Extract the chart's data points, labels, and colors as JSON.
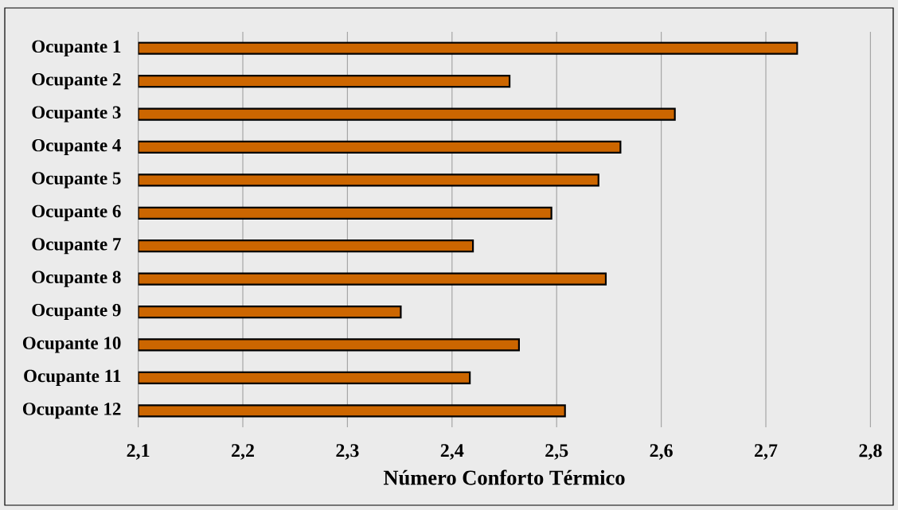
{
  "chart_data": {
    "type": "bar",
    "orientation": "horizontal",
    "xlabel": "Número Conforto Térmico",
    "categories": [
      "Ocupante 1",
      "Ocupante 2",
      "Ocupante 3",
      "Ocupante 4",
      "Ocupante 5",
      "Ocupante 6",
      "Ocupante 7",
      "Ocupante 8",
      "Ocupante 9",
      "Ocupante 10",
      "Ocupante 11",
      "Ocupante 12"
    ],
    "values": [
      2.73,
      2.455,
      2.613,
      2.561,
      2.54,
      2.495,
      2.42,
      2.547,
      2.351,
      2.464,
      2.417,
      2.508
    ],
    "color": "#cc6600",
    "xlim": [
      2.1,
      2.8
    ],
    "xticks": [
      {
        "value": 2.1,
        "label": "2,1"
      },
      {
        "value": 2.2,
        "label": "2,2"
      },
      {
        "value": 2.3,
        "label": "2,3"
      },
      {
        "value": 2.4,
        "label": "2,4"
      },
      {
        "value": 2.5,
        "label": "2,5"
      },
      {
        "value": 2.6,
        "label": "2,6"
      },
      {
        "value": 2.7,
        "label": "2,7"
      },
      {
        "value": 2.8,
        "label": "2,8"
      }
    ],
    "grid": "x"
  }
}
